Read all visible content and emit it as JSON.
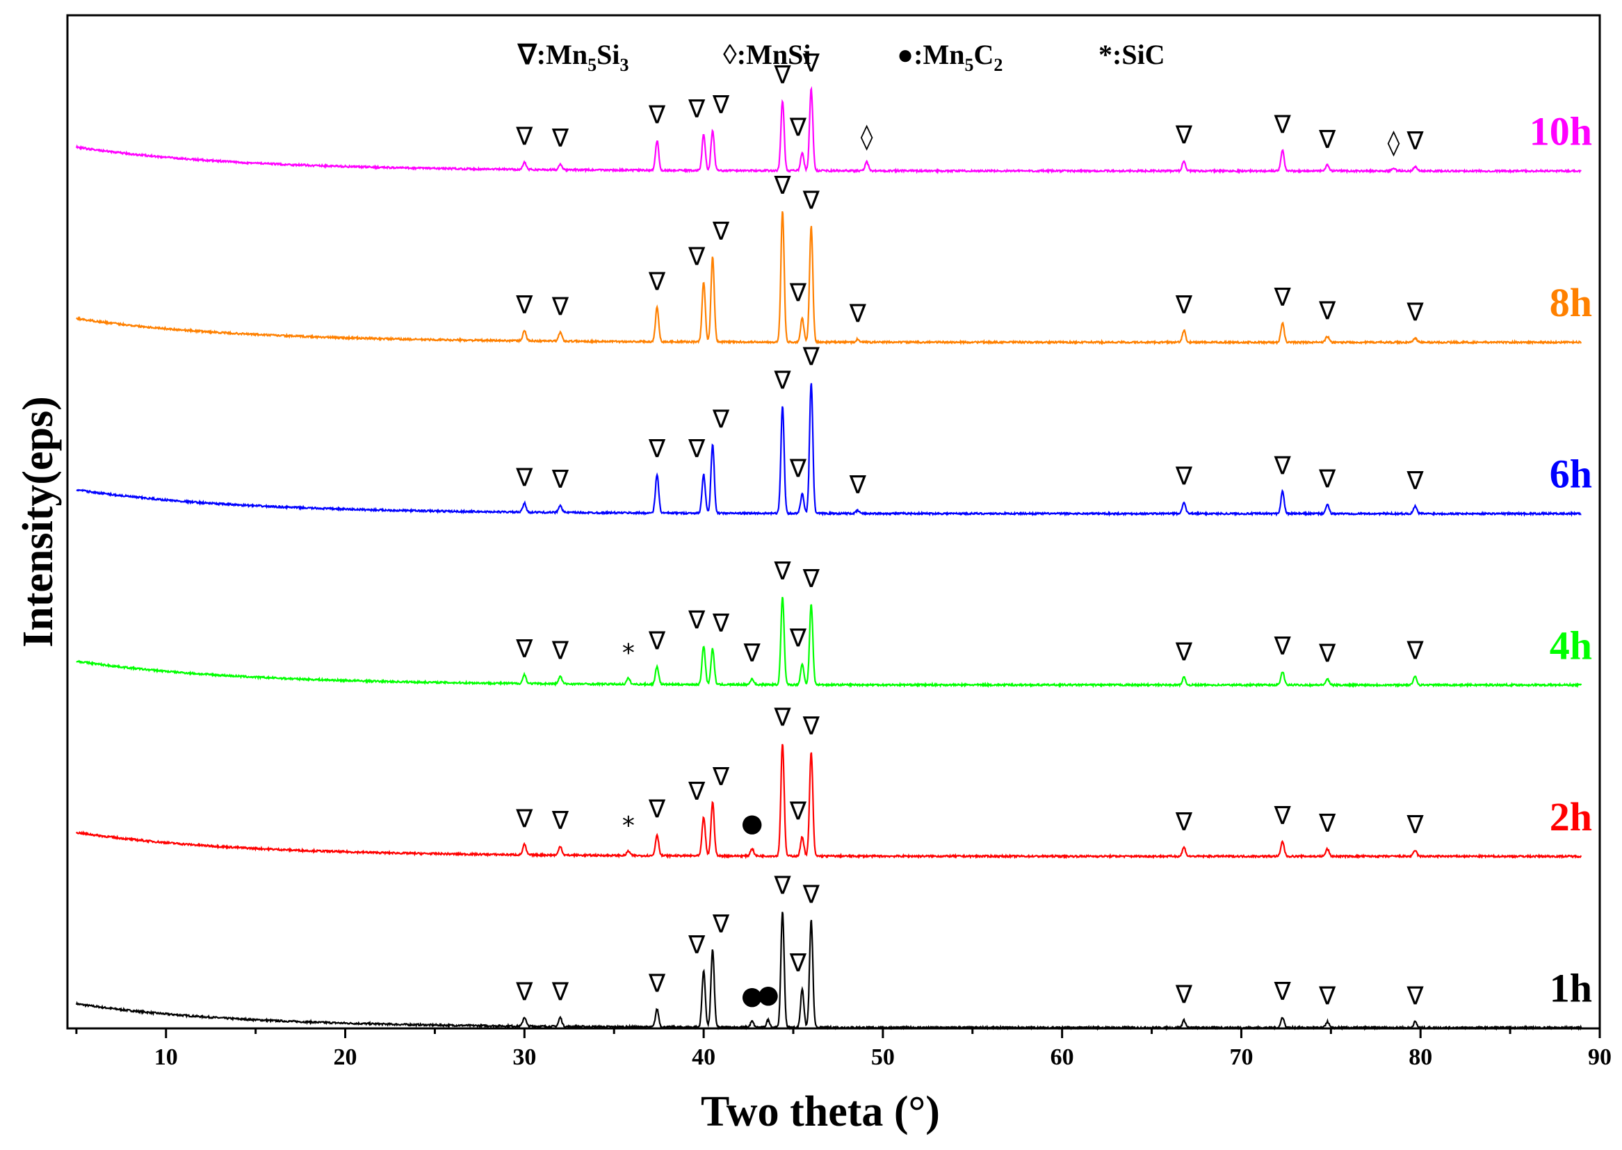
{
  "chart_data": {
    "type": "line",
    "title": "",
    "xlabel": "Two theta (°)",
    "ylabel": "Intensity(eps)",
    "xlim": [
      4.5,
      90
    ],
    "ylim": [
      0,
      6.8
    ],
    "xticks": [
      10,
      20,
      30,
      40,
      50,
      60,
      70,
      80,
      90
    ],
    "grid": false,
    "legend": {
      "placement": "top-center",
      "entries": [
        {
          "symbol": "∇",
          "label": "Mn",
          "sub1": "5",
          "mid": "Si",
          "sub2": "3",
          "end": ""
        },
        {
          "symbol": "◊",
          "label": "MnSi",
          "sub1": "",
          "mid": "",
          "sub2": "",
          "end": ""
        },
        {
          "symbol": "●",
          "label": "Mn",
          "sub1": "5",
          "mid": "C",
          "sub2": "2",
          "end": ""
        },
        {
          "symbol": "*",
          "label": "SiC",
          "sub1": "",
          "mid": "",
          "sub2": "",
          "end": ""
        }
      ]
    },
    "series": [
      {
        "name": "1h",
        "color": "#000000",
        "offset": 0.0,
        "peaks": [
          [
            30.0,
            0.06
          ],
          [
            32.0,
            0.06
          ],
          [
            37.4,
            0.12
          ],
          [
            40.0,
            0.38
          ],
          [
            40.5,
            0.52
          ],
          [
            42.7,
            0.04
          ],
          [
            43.6,
            0.05
          ],
          [
            44.4,
            0.78
          ],
          [
            45.5,
            0.26
          ],
          [
            46.0,
            0.72
          ],
          [
            66.8,
            0.05
          ],
          [
            72.3,
            0.07
          ],
          [
            74.8,
            0.04
          ],
          [
            79.7,
            0.04
          ]
        ]
      },
      {
        "name": "2h",
        "color": "#ff0000",
        "offset": 1.15,
        "peaks": [
          [
            30.0,
            0.07
          ],
          [
            32.0,
            0.06
          ],
          [
            35.8,
            0.03
          ],
          [
            37.4,
            0.14
          ],
          [
            40.0,
            0.26
          ],
          [
            40.5,
            0.36
          ],
          [
            42.7,
            0.05
          ],
          [
            44.4,
            0.76
          ],
          [
            45.5,
            0.13
          ],
          [
            46.0,
            0.7
          ],
          [
            66.8,
            0.06
          ],
          [
            72.3,
            0.1
          ],
          [
            74.8,
            0.05
          ],
          [
            79.7,
            0.04
          ]
        ]
      },
      {
        "name": "4h",
        "color": "#00ff00",
        "offset": 2.3,
        "peaks": [
          [
            30.0,
            0.06
          ],
          [
            32.0,
            0.05
          ],
          [
            35.8,
            0.04
          ],
          [
            37.4,
            0.12
          ],
          [
            40.0,
            0.26
          ],
          [
            40.5,
            0.24
          ],
          [
            42.7,
            0.04
          ],
          [
            44.4,
            0.59
          ],
          [
            45.5,
            0.14
          ],
          [
            46.0,
            0.54
          ],
          [
            66.8,
            0.05
          ],
          [
            72.3,
            0.09
          ],
          [
            74.8,
            0.04
          ],
          [
            79.7,
            0.06
          ]
        ]
      },
      {
        "name": "6h",
        "color": "#0000ff",
        "offset": 3.45,
        "peaks": [
          [
            30.0,
            0.06
          ],
          [
            32.0,
            0.05
          ],
          [
            37.4,
            0.26
          ],
          [
            40.0,
            0.26
          ],
          [
            40.5,
            0.46
          ],
          [
            44.4,
            0.72
          ],
          [
            45.5,
            0.13
          ],
          [
            46.0,
            0.88
          ],
          [
            48.6,
            0.02
          ],
          [
            66.8,
            0.08
          ],
          [
            72.3,
            0.15
          ],
          [
            74.8,
            0.06
          ],
          [
            79.7,
            0.05
          ]
        ]
      },
      {
        "name": "8h",
        "color": "#ff8000",
        "offset": 4.6,
        "peaks": [
          [
            30.0,
            0.07
          ],
          [
            32.0,
            0.06
          ],
          [
            37.4,
            0.23
          ],
          [
            40.0,
            0.4
          ],
          [
            40.5,
            0.57
          ],
          [
            44.4,
            0.88
          ],
          [
            45.5,
            0.16
          ],
          [
            46.0,
            0.78
          ],
          [
            48.6,
            0.02
          ],
          [
            66.8,
            0.08
          ],
          [
            72.3,
            0.13
          ],
          [
            74.8,
            0.04
          ],
          [
            79.7,
            0.03
          ]
        ]
      },
      {
        "name": "10h",
        "color": "#ff00ff",
        "offset": 5.75,
        "peaks": [
          [
            30.0,
            0.05
          ],
          [
            32.0,
            0.04
          ],
          [
            37.4,
            0.2
          ],
          [
            40.0,
            0.24
          ],
          [
            40.5,
            0.27
          ],
          [
            44.4,
            0.47
          ],
          [
            45.5,
            0.12
          ],
          [
            46.0,
            0.55
          ],
          [
            49.1,
            0.06
          ],
          [
            66.8,
            0.07
          ],
          [
            72.3,
            0.14
          ],
          [
            74.8,
            0.04
          ],
          [
            78.5,
            0.02
          ],
          [
            79.7,
            0.03
          ]
        ]
      }
    ],
    "markers": [
      {
        "series": "1h",
        "items": [
          [
            30.0,
            "∇"
          ],
          [
            32.0,
            "∇"
          ],
          [
            37.4,
            "∇"
          ],
          [
            40.0,
            "∇"
          ],
          [
            40.5,
            "∇"
          ],
          [
            42.7,
            "●"
          ],
          [
            43.6,
            "●"
          ],
          [
            44.4,
            "∇"
          ],
          [
            45.5,
            "∇"
          ],
          [
            46.0,
            "∇"
          ],
          [
            66.8,
            "∇"
          ],
          [
            72.3,
            "∇"
          ],
          [
            74.8,
            "∇"
          ],
          [
            79.7,
            "∇"
          ]
        ]
      },
      {
        "series": "2h",
        "items": [
          [
            30.0,
            "∇"
          ],
          [
            32.0,
            "∇"
          ],
          [
            35.8,
            "*"
          ],
          [
            37.4,
            "∇"
          ],
          [
            40.0,
            "∇"
          ],
          [
            40.5,
            "∇"
          ],
          [
            42.7,
            "●"
          ],
          [
            44.4,
            "∇"
          ],
          [
            45.5,
            "∇"
          ],
          [
            46.0,
            "∇"
          ],
          [
            66.8,
            "∇"
          ],
          [
            72.3,
            "∇"
          ],
          [
            74.8,
            "∇"
          ],
          [
            79.7,
            "∇"
          ]
        ]
      },
      {
        "series": "4h",
        "items": [
          [
            30.0,
            "∇"
          ],
          [
            32.0,
            "∇"
          ],
          [
            35.8,
            "*"
          ],
          [
            37.4,
            "∇"
          ],
          [
            40.0,
            "∇"
          ],
          [
            40.5,
            "∇"
          ],
          [
            42.7,
            "∇"
          ],
          [
            44.4,
            "∇"
          ],
          [
            45.5,
            "∇"
          ],
          [
            46.0,
            "∇"
          ],
          [
            66.8,
            "∇"
          ],
          [
            72.3,
            "∇"
          ],
          [
            74.8,
            "∇"
          ],
          [
            79.7,
            "∇"
          ]
        ]
      },
      {
        "series": "6h",
        "items": [
          [
            30.0,
            "∇"
          ],
          [
            32.0,
            "∇"
          ],
          [
            37.4,
            "∇"
          ],
          [
            40.0,
            "∇"
          ],
          [
            40.5,
            "∇"
          ],
          [
            44.4,
            "∇"
          ],
          [
            45.5,
            "∇"
          ],
          [
            46.0,
            "∇"
          ],
          [
            48.6,
            "∇"
          ],
          [
            66.8,
            "∇"
          ],
          [
            72.3,
            "∇"
          ],
          [
            74.8,
            "∇"
          ],
          [
            79.7,
            "∇"
          ]
        ]
      },
      {
        "series": "8h",
        "items": [
          [
            30.0,
            "∇"
          ],
          [
            32.0,
            "∇"
          ],
          [
            37.4,
            "∇"
          ],
          [
            40.0,
            "∇"
          ],
          [
            40.5,
            "∇"
          ],
          [
            44.4,
            "∇"
          ],
          [
            45.5,
            "∇"
          ],
          [
            46.0,
            "∇"
          ],
          [
            48.6,
            "∇"
          ],
          [
            66.8,
            "∇"
          ],
          [
            72.3,
            "∇"
          ],
          [
            74.8,
            "∇"
          ],
          [
            79.7,
            "∇"
          ]
        ]
      },
      {
        "series": "10h",
        "items": [
          [
            30.0,
            "∇"
          ],
          [
            32.0,
            "∇"
          ],
          [
            37.4,
            "∇"
          ],
          [
            40.0,
            "∇"
          ],
          [
            40.5,
            "∇"
          ],
          [
            44.4,
            "∇"
          ],
          [
            45.5,
            "∇"
          ],
          [
            46.0,
            "∇"
          ],
          [
            49.1,
            "◊"
          ],
          [
            66.8,
            "∇"
          ],
          [
            72.3,
            "∇"
          ],
          [
            74.8,
            "∇"
          ],
          [
            78.5,
            "◊"
          ],
          [
            79.7,
            "∇"
          ]
        ]
      }
    ]
  }
}
